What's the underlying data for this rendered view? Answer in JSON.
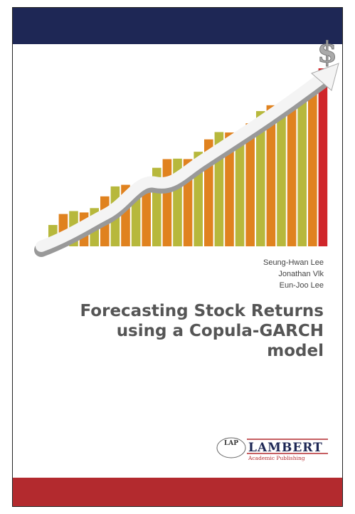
{
  "cover": {
    "authors": [
      "Seung-Hwan Lee",
      "Jonathan Vlk",
      "Eun-Joo Lee"
    ],
    "title_lines": [
      "Forecasting Stock Returns",
      "using a Copula-GARCH",
      "model"
    ],
    "publisher": {
      "badge": "LAP",
      "name": "LAMBERT",
      "tagline": "Academic Publishing"
    }
  }
}
